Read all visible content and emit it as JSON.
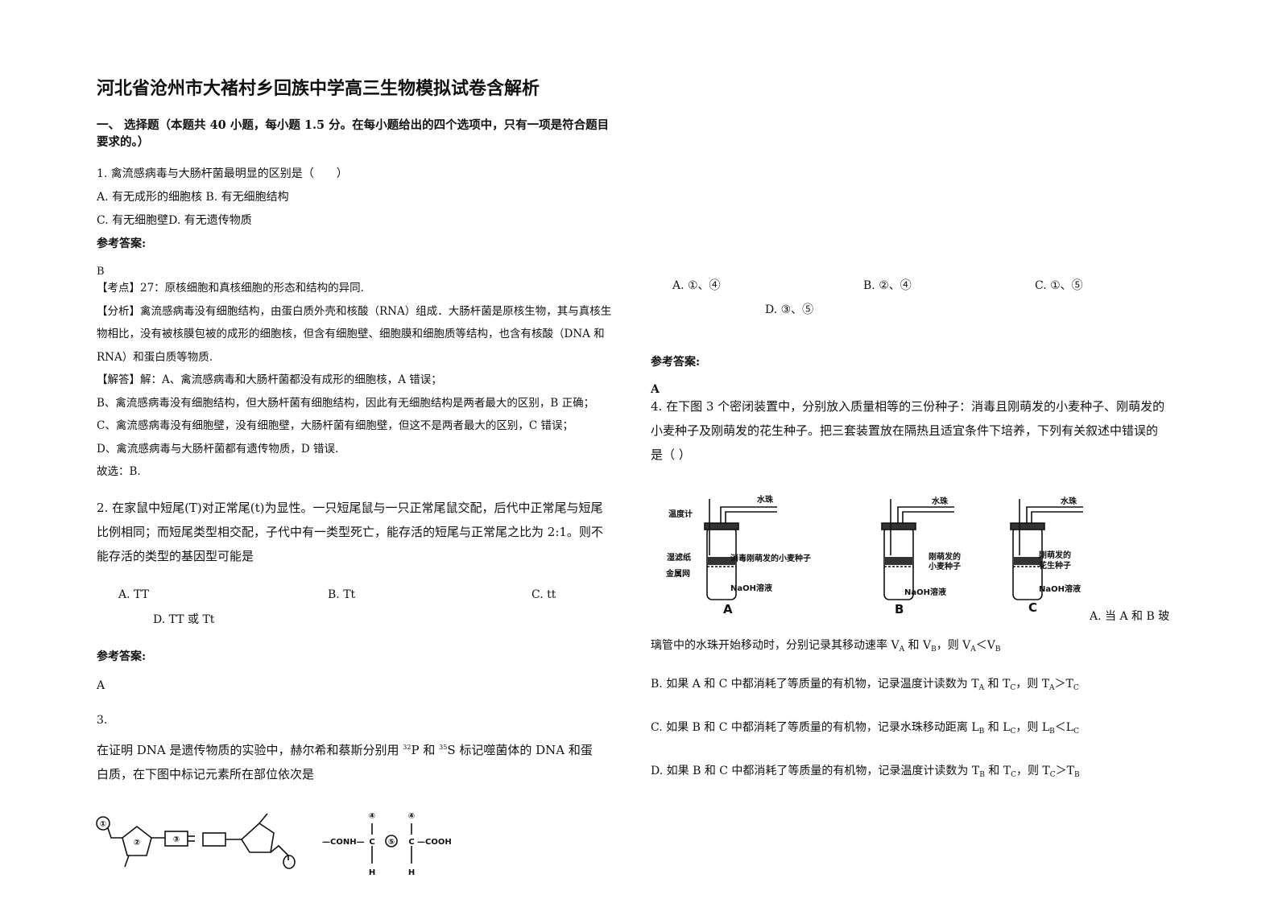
{
  "title": "河北省沧州市大褚村乡回族中学高三生物模拟试卷含解析",
  "section": "一、 选择题（本题共 40 小题，每小题 1.5 分。在每小题给出的四个选项中，只有一项是符合题目要求的。）",
  "q1": {
    "stem": "1. 禽流感病毒与大肠杆菌最明显的区别是（　　）",
    "options": [
      "A. 有无成形的细胞核 B. 有无细胞结构",
      "C. 有无细胞壁D. 有无遗传物质"
    ],
    "answer_label": "参考答案:",
    "answer": "B",
    "analysis": [
      "【考点】27：原核细胞和真核细胞的形态和结构的异同.",
      "【分析】禽流感病毒没有细胞结构，由蛋白质外壳和核酸（RNA）组成．大肠杆菌是原核生物，其与真核生物相比，没有被核膜包被的成形的细胞核，但含有细胞壁、细胞膜和细胞质等结构，也含有核酸（DNA 和 RNA）和蛋白质等物质.",
      "【解答】解：A、禽流感病毒和大肠杆菌都没有成形的细胞核，A 错误；",
      "B、禽流感病毒没有细胞结构，但大肠杆菌有细胞结构，因此有无细胞结构是两者最大的区别，B 正确；",
      "C、禽流感病毒没有细胞壁，没有细胞壁，大肠杆菌有细胞壁，但这不是两者最大的区别，C 错误；",
      "D、禽流感病毒与大肠杆菌都有遗传物质，D 错误.",
      "故选：B."
    ]
  },
  "q2": {
    "stem": "2. 在家鼠中短尾(T)对正常尾(t)为显性。一只短尾鼠与一只正常尾鼠交配，后代中正常尾与短尾比例相同；而短尾类型相交配，子代中有一类型死亡，能存活的短尾与正常尾之比为 2:1。则不能存活的类型的基因型可能是",
    "options": [
      "A. TT",
      "B. Tt",
      "C. tt",
      "D. TT 或 Tt"
    ],
    "answer_label": "参考答案:",
    "answer": "A"
  },
  "q3": {
    "number": "3.",
    "stem": [
      "在证明 DNA 是遗传物质的实验中，赫尔希和蔡斯分别用 ",
      "32",
      "P 和 ",
      "35",
      "S 标记噬菌体的 DNA 和蛋白质，在下图中标记元素所在部位依次是"
    ],
    "figure_labels": [
      "①",
      "②",
      "③",
      "④",
      "④",
      "—CONH—",
      "C",
      "⑤",
      "C",
      "—COOH",
      "H",
      "H"
    ],
    "options": [
      "A. ①、④",
      "B. ②、④",
      "C. ①、⑤",
      "D. ③、⑤"
    ],
    "answer_label": "参考答案:",
    "answer": "A"
  },
  "q4": {
    "stem": "4. 在下图 3 个密闭装置中，分别放入质量相等的三份种子：消毒且刚萌发的小麦种子、刚萌发的小麦种子及刚萌发的花生种子。把三套装置放在隔热且适宜条件下培养，下列有关叙述中错误的是（ ）",
    "figure_labels": [
      "水珠",
      "温度计",
      "湿滤纸",
      "消毒刚萌发的小麦种子",
      "金属网",
      "NaOH溶液",
      "A",
      "水珠",
      "刚萌发的",
      "小麦种子",
      "NaOH溶液",
      "B",
      "水珠",
      "刚萌发的",
      "花生种子",
      "NaOH溶液",
      "C"
    ],
    "options": [
      [
        "A. 当 A 和 B 玻璃管中的水珠开始移动时，分别记录其移动速率 V",
        "A",
        " 和 V",
        "B",
        "，则 V",
        "A",
        "＜V",
        "B"
      ],
      [
        "B. 如果 A 和 C 中都消耗了等质量的有机物，记录温度计读数为 T",
        "A",
        " 和 T",
        "C",
        "，则 T",
        "A",
        "＞T",
        "C"
      ],
      [
        "C. 如果 B 和 C 中都消耗了等质量的有机物，记录水珠移动距离 L",
        "B",
        " 和 L",
        "C",
        "，则 L",
        "B",
        "＜L",
        "C"
      ],
      [
        "D. 如果 B 和 C 中都消耗了等质量的有机物，记录温度计读数为 T",
        "B",
        " 和 T",
        "C",
        "，则 T",
        "C",
        "＞T",
        "B"
      ]
    ]
  }
}
